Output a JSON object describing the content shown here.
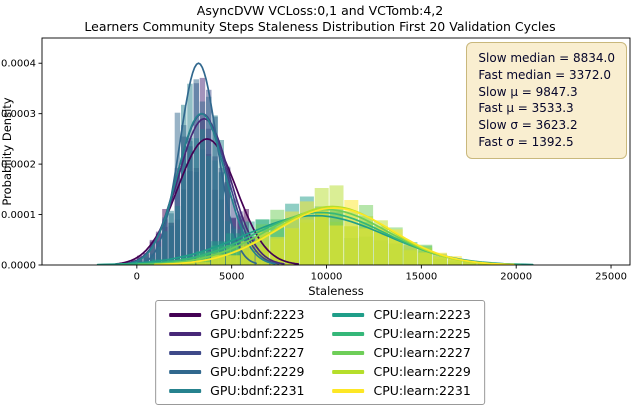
{
  "title": {
    "line1": "AsyncDVW VCLoss:0,1 and VCTomb:4,2",
    "line2": "Learners Community Steps Staleness Distribution First 20 Validation Cycles"
  },
  "stats_box": {
    "lines": [
      "Slow median = 8834.0",
      "Fast median = 3372.0",
      "Slow μ = 9847.3",
      "Fast μ = 3533.3",
      "Slow σ = 3623.2",
      "Fast σ = 1392.5"
    ]
  },
  "chart_data": {
    "type": "histogram",
    "subtype": "overlaid histograms with KDE curves, viridis palette",
    "title": "AsyncDVW VCLoss:0,1 and VCTomb:4,2 — Learners Community Steps Staleness Distribution First 20 Validation Cycles",
    "xlabel": "Staleness",
    "ylabel": "Probability Density",
    "xlim": [
      -5000,
      26000
    ],
    "ylim": [
      0,
      0.00045
    ],
    "x_ticks": [
      0,
      5000,
      10000,
      15000,
      20000,
      25000
    ],
    "y_ticks": [
      0,
      0.0001,
      0.0002,
      0.0003,
      0.0004
    ],
    "grid": false,
    "legend_position": "below plot, 2 columns (GPU column left, CPU column right)",
    "stats": {
      "slow_median": 8834.0,
      "fast_median": 3372.0,
      "slow_mu": 9847.3,
      "fast_mu": 3533.3,
      "slow_sigma": 3623.2,
      "fast_sigma": 1392.5
    },
    "series": [
      {
        "name": "GPU:bdnf:2223",
        "group": "fast",
        "color": "#440154",
        "mu": 3700,
        "sigma": 1550,
        "peak_density": 0.00025,
        "bin_width": 330,
        "hist_scale": 0.9
      },
      {
        "name": "GPU:bdnf:2225",
        "group": "fast",
        "color": "#482878",
        "mu": 3550,
        "sigma": 1350,
        "peak_density": 0.00029,
        "bin_width": 330,
        "hist_scale": 0.95
      },
      {
        "name": "GPU:bdnf:2227",
        "group": "fast",
        "color": "#3e4989",
        "mu": 3450,
        "sigma": 1300,
        "peak_density": 0.0003,
        "bin_width": 330,
        "hist_scale": 0.95
      },
      {
        "name": "GPU:bdnf:2229",
        "group": "fast",
        "color": "#31688e",
        "mu": 3250,
        "sigma": 980,
        "peak_density": 0.0004,
        "bin_width": 330,
        "hist_scale": 1.08
      },
      {
        "name": "GPU:bdnf:2231",
        "group": "fast",
        "color": "#26828e",
        "mu": 3400,
        "sigma": 1250,
        "peak_density": 0.0003,
        "bin_width": 330,
        "hist_scale": 1.0
      },
      {
        "name": "CPU:learn:2223",
        "group": "slow",
        "color": "#1f9e89",
        "mu": 9400,
        "sigma": 3700,
        "peak_density": 9.8e-05,
        "bin_width": 780,
        "hist_scale": 1.0
      },
      {
        "name": "CPU:learn:2225",
        "group": "slow",
        "color": "#35b779",
        "mu": 9700,
        "sigma": 3400,
        "peak_density": 0.000104,
        "bin_width": 780,
        "hist_scale": 1.0
      },
      {
        "name": "CPU:learn:2227",
        "group": "slow",
        "color": "#6ece58",
        "mu": 10000,
        "sigma": 3200,
        "peak_density": 0.00011,
        "bin_width": 780,
        "hist_scale": 1.05
      },
      {
        "name": "CPU:learn:2229",
        "group": "slow",
        "color": "#b5de2b",
        "mu": 10300,
        "sigma": 3000,
        "peak_density": 0.000116,
        "bin_width": 780,
        "hist_scale": 1.05
      },
      {
        "name": "CPU:learn:2231",
        "group": "slow",
        "color": "#fde725",
        "mu": 10400,
        "sigma": 3050,
        "peak_density": 0.000113,
        "bin_width": 780,
        "hist_scale": 1.05
      }
    ]
  }
}
